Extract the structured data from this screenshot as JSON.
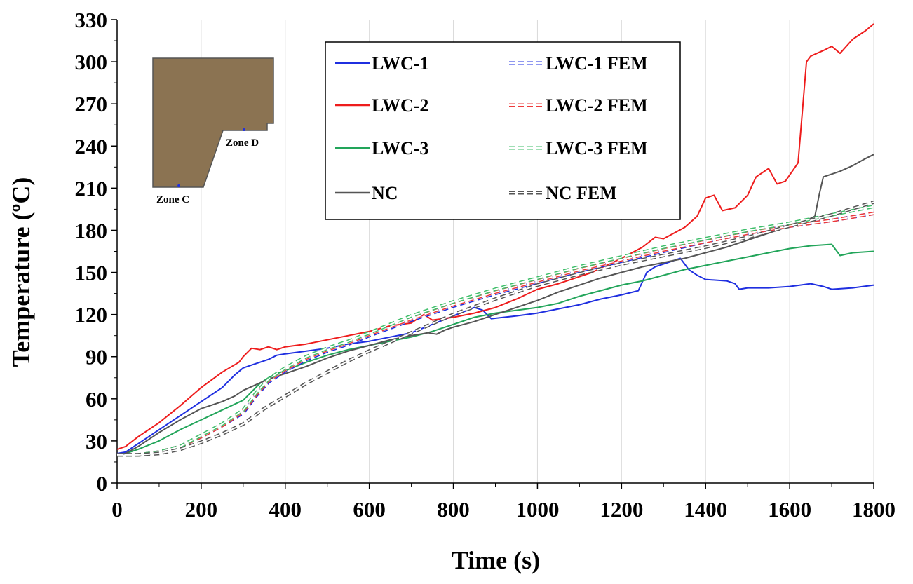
{
  "chart_data": {
    "type": "line",
    "title": "",
    "xlabel": "Time (s)",
    "ylabel": "Temperature (ºC)",
    "xlim": [
      0,
      1800
    ],
    "ylim": [
      0,
      330
    ],
    "xticks": [
      0,
      200,
      400,
      600,
      800,
      1000,
      1200,
      1400,
      1600,
      1800
    ],
    "yticks": [
      0,
      30,
      60,
      90,
      120,
      150,
      180,
      210,
      240,
      270,
      300,
      330
    ],
    "grid": "vertical",
    "legend_position": "top-center",
    "series": [
      {
        "name": "LWC-1",
        "style": "solid",
        "color": "#1f2fe0",
        "x": [
          0,
          20,
          50,
          100,
          150,
          200,
          250,
          280,
          300,
          320,
          340,
          360,
          380,
          400,
          450,
          500,
          550,
          600,
          650,
          700,
          750,
          800,
          850,
          870,
          890,
          950,
          1000,
          1050,
          1100,
          1150,
          1200,
          1240,
          1260,
          1280,
          1300,
          1340,
          1350,
          1360,
          1380,
          1400,
          1450,
          1470,
          1480,
          1500,
          1550,
          1600,
          1650,
          1680,
          1700,
          1750,
          1800
        ],
        "y": [
          21,
          22,
          28,
          38,
          48,
          58,
          68,
          77,
          82,
          84,
          86,
          88,
          91,
          92,
          94,
          96,
          99,
          101,
          104,
          107,
          113,
          119,
          125,
          123,
          117,
          119,
          121,
          124,
          127,
          131,
          134,
          137,
          150,
          154,
          156,
          160,
          156,
          152,
          148,
          145,
          144,
          142,
          138,
          139,
          139,
          140,
          142,
          140,
          138,
          139,
          141
        ]
      },
      {
        "name": "LWC-2",
        "style": "solid",
        "color": "#ee1c1c",
        "x": [
          0,
          20,
          50,
          100,
          150,
          200,
          250,
          290,
          300,
          320,
          340,
          360,
          380,
          400,
          450,
          500,
          550,
          600,
          650,
          700,
          730,
          750,
          800,
          850,
          900,
          950,
          1000,
          1050,
          1100,
          1130,
          1150,
          1200,
          1250,
          1280,
          1300,
          1350,
          1380,
          1400,
          1420,
          1440,
          1470,
          1500,
          1520,
          1550,
          1570,
          1590,
          1620,
          1640,
          1650,
          1680,
          1700,
          1720,
          1750,
          1780,
          1800
        ],
        "y": [
          24,
          26,
          33,
          43,
          55,
          68,
          79,
          86,
          90,
          96,
          95,
          97,
          95,
          97,
          99,
          102,
          105,
          108,
          112,
          114,
          120,
          116,
          118,
          121,
          125,
          131,
          138,
          142,
          147,
          150,
          153,
          160,
          168,
          175,
          174,
          182,
          190,
          203,
          205,
          194,
          196,
          205,
          218,
          224,
          213,
          215,
          228,
          300,
          304,
          308,
          311,
          306,
          316,
          322,
          327
        ]
      },
      {
        "name": "LWC-3",
        "style": "solid",
        "color": "#22a55a",
        "x": [
          0,
          20,
          50,
          100,
          150,
          200,
          250,
          300,
          320,
          340,
          360,
          380,
          400,
          450,
          500,
          550,
          600,
          650,
          700,
          750,
          800,
          850,
          900,
          950,
          1000,
          1050,
          1100,
          1150,
          1200,
          1250,
          1300,
          1350,
          1400,
          1450,
          1500,
          1550,
          1600,
          1650,
          1700,
          1720,
          1750,
          1800
        ],
        "y": [
          20,
          21,
          24,
          30,
          38,
          45,
          52,
          59,
          65,
          71,
          75,
          78,
          80,
          86,
          91,
          95,
          98,
          101,
          104,
          108,
          113,
          118,
          121,
          123,
          125,
          128,
          133,
          137,
          141,
          144,
          148,
          152,
          155,
          158,
          161,
          164,
          167,
          169,
          170,
          162,
          164,
          165
        ]
      },
      {
        "name": "NC",
        "style": "solid",
        "color": "#555555",
        "x": [
          0,
          20,
          50,
          100,
          150,
          200,
          250,
          280,
          300,
          330,
          360,
          400,
          450,
          500,
          550,
          600,
          650,
          700,
          740,
          760,
          780,
          800,
          850,
          900,
          950,
          1000,
          1050,
          1100,
          1150,
          1200,
          1250,
          1300,
          1350,
          1400,
          1450,
          1500,
          1550,
          1600,
          1640,
          1660,
          1670,
          1680,
          1700,
          1720,
          1750,
          1780,
          1800
        ],
        "y": [
          20,
          21,
          26,
          36,
          45,
          53,
          58,
          62,
          66,
          70,
          74,
          78,
          83,
          89,
          94,
          98,
          102,
          105,
          107,
          106,
          109,
          111,
          115,
          120,
          125,
          130,
          136,
          141,
          146,
          150,
          154,
          157,
          160,
          164,
          168,
          173,
          178,
          183,
          187,
          190,
          205,
          218,
          220,
          222,
          226,
          231,
          234
        ]
      },
      {
        "name": "LWC-1 FEM",
        "style": "dashed",
        "color": "#1f2fe0",
        "x": [
          0,
          50,
          100,
          150,
          200,
          250,
          300,
          330,
          360,
          380,
          400,
          450,
          500,
          550,
          600,
          700,
          800,
          900,
          1000,
          1100,
          1200,
          1300,
          1400,
          1500,
          1600,
          1700,
          1800
        ],
        "y": [
          20,
          20,
          22,
          26,
          33,
          41,
          50,
          62,
          72,
          76,
          80,
          88,
          94,
          99,
          105,
          116,
          126,
          135,
          143,
          151,
          158,
          165,
          172,
          178,
          183,
          187,
          192
        ]
      },
      {
        "name": "LWC-2 FEM",
        "style": "dashed",
        "color": "#ee3a3a",
        "x": [
          0,
          50,
          100,
          150,
          200,
          250,
          300,
          330,
          360,
          380,
          400,
          450,
          500,
          550,
          600,
          700,
          800,
          900,
          1000,
          1100,
          1200,
          1300,
          1400,
          1500,
          1600,
          1700,
          1800
        ],
        "y": [
          20,
          20,
          22,
          26,
          33,
          41,
          51,
          63,
          73,
          77,
          81,
          89,
          95,
          100,
          106,
          117,
          127,
          136,
          144,
          152,
          159,
          166,
          172,
          178,
          183,
          187,
          192
        ]
      },
      {
        "name": "LWC-3 FEM",
        "style": "dashed",
        "color": "#3fbe6a",
        "x": [
          0,
          50,
          100,
          150,
          200,
          250,
          300,
          330,
          360,
          380,
          400,
          450,
          500,
          550,
          600,
          700,
          800,
          900,
          1000,
          1100,
          1200,
          1300,
          1400,
          1500,
          1600,
          1700,
          1800
        ],
        "y": [
          20,
          20,
          22,
          26,
          34,
          42,
          52,
          64,
          74,
          78,
          82,
          90,
          96,
          101,
          107,
          119,
          129,
          138,
          146,
          154,
          161,
          168,
          174,
          180,
          185,
          191,
          197
        ]
      },
      {
        "name": "NC FEM",
        "style": "dashed",
        "color": "#555555",
        "x": [
          0,
          50,
          100,
          150,
          200,
          250,
          300,
          350,
          400,
          450,
          500,
          550,
          600,
          700,
          800,
          900,
          1000,
          1100,
          1200,
          1300,
          1400,
          1500,
          1600,
          1700,
          1800
        ],
        "y": [
          20,
          20,
          21,
          24,
          29,
          35,
          42,
          53,
          62,
          71,
          79,
          87,
          94,
          107,
          120,
          131,
          141,
          149,
          156,
          162,
          168,
          175,
          183,
          191,
          200
        ]
      }
    ],
    "inset": {
      "label_c": "Zone C",
      "label_d": "Zone D",
      "fill_color": "#8b7352"
    }
  }
}
